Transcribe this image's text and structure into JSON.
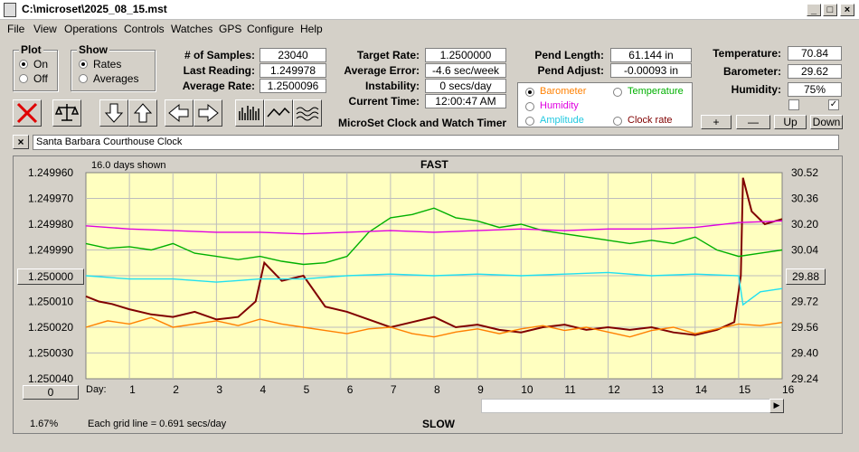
{
  "window": {
    "title": "C:\\microset\\2025_08_15.mst"
  },
  "menu": [
    "File",
    "View",
    "Operations",
    "Controls",
    "Watches",
    "GPS",
    "Configure",
    "Help"
  ],
  "plot": {
    "title": "Plot",
    "on": "On",
    "off": "Off"
  },
  "show": {
    "title": "Show",
    "rates": "Rates",
    "averages": "Averages"
  },
  "stats": {
    "samples_label": "# of Samples:",
    "samples": "23040",
    "last_label": "Last Reading:",
    "last": "1.249978",
    "avg_label": "Average Rate:",
    "avg": "1.2500096"
  },
  "target": {
    "target_label": "Target Rate:",
    "target": "1.2500000",
    "error_label": "Average Error:",
    "error": "-4.6 sec/week",
    "instab_label": "Instability:",
    "instab": "0 secs/day",
    "time_label": "Current Time:",
    "time": "12:00:47 AM",
    "app_name": "MicroSet Clock and Watch Timer"
  },
  "pend": {
    "length_label": "Pend Length:",
    "length": "61.144 in",
    "adjust_label": "Pend Adjust:",
    "adjust": "-0.00093 in"
  },
  "env": {
    "temp_label": "Temperature:",
    "temp": "70.84",
    "baro_label": "Barometer:",
    "baro": "29.62",
    "hum_label": "Humidity:",
    "hum": "75%"
  },
  "secondary": {
    "barometer": "Barometer",
    "temperature": "Temperature",
    "humidity": "Humidity",
    "amplitude": "Amplitude",
    "clock_rate": "Clock rate"
  },
  "adjust_buttons": {
    "plus": "+",
    "minus": "—",
    "up": "Up",
    "down": "Down"
  },
  "clock_name": "Santa Barbara Courthouse Clock",
  "close_x": "×",
  "chart_controls": {
    "center_left": "1.250000",
    "left_bottom": "0",
    "center_right": "29.88",
    "percent": "1.67%",
    "grid_note": "Each grid line = 0.691 secs/day"
  },
  "colors": {
    "rate": "#800000",
    "barometer": "#ff8000",
    "temperature": "#00b000",
    "humidity": "#e000e0",
    "amplitude": "#20e0f0",
    "plot_bg": "#ffffc0"
  },
  "chart_data": {
    "type": "line",
    "title": "FAST",
    "bottom_label": "SLOW",
    "days_shown": "16.0 days shown",
    "xlabel": "Day:",
    "x_ticks": [
      "1",
      "2",
      "3",
      "4",
      "5",
      "6",
      "7",
      "8",
      "9",
      "10",
      "11",
      "12",
      "13",
      "14",
      "15",
      "16"
    ],
    "xlim": [
      0,
      16
    ],
    "y_ticks_left": [
      "1.249960",
      "1.249970",
      "1.249980",
      "1.249990",
      "1.250000",
      "1.250010",
      "1.250020",
      "1.250030",
      "1.250040"
    ],
    "ylim_left": [
      1.24996,
      1.25004
    ],
    "y_ticks_right": [
      "30.52",
      "30.36",
      "30.20",
      "30.04",
      "29.88",
      "29.72",
      "29.56",
      "29.40",
      "29.24"
    ],
    "ylim_right": [
      30.52,
      29.24
    ],
    "series": [
      {
        "name": "Clock rate",
        "color": "#800000",
        "x": [
          0,
          0.3,
          0.6,
          1,
          1.5,
          2,
          2.5,
          3,
          3.5,
          3.9,
          4.1,
          4.5,
          5,
          5.5,
          6,
          6.5,
          7,
          7.5,
          8,
          8.5,
          9,
          9.5,
          10,
          10.5,
          11,
          11.5,
          12,
          12.5,
          13,
          13.5,
          14,
          14.5,
          14.9,
          15.05,
          15.1,
          15.3,
          15.6,
          16
        ],
        "y": [
          1.250008,
          1.25001,
          1.250011,
          1.250013,
          1.250015,
          1.250016,
          1.250014,
          1.250017,
          1.250016,
          1.25001,
          1.249995,
          1.250002,
          1.25,
          1.250012,
          1.250014,
          1.250017,
          1.25002,
          1.250018,
          1.250016,
          1.25002,
          1.250019,
          1.250021,
          1.250022,
          1.25002,
          1.250019,
          1.250021,
          1.25002,
          1.250021,
          1.25002,
          1.250022,
          1.250023,
          1.250021,
          1.250018,
          1.25,
          1.249962,
          1.249975,
          1.24998,
          1.249978
        ]
      },
      {
        "name": "Barometer",
        "color": "#ff8000",
        "x": [
          0,
          0.5,
          1,
          1.5,
          2,
          2.5,
          3,
          3.5,
          4,
          4.5,
          5,
          5.5,
          6,
          6.5,
          7,
          7.5,
          8,
          8.5,
          9,
          9.5,
          10,
          10.5,
          11,
          11.5,
          12,
          12.5,
          13,
          13.5,
          14,
          14.5,
          15,
          15.5,
          16
        ],
        "y": [
          29.56,
          29.6,
          29.58,
          29.62,
          29.56,
          29.58,
          29.6,
          29.57,
          29.61,
          29.58,
          29.56,
          29.54,
          29.52,
          29.55,
          29.56,
          29.52,
          29.5,
          29.53,
          29.55,
          29.52,
          29.55,
          29.57,
          29.54,
          29.56,
          29.53,
          29.5,
          29.54,
          29.56,
          29.52,
          29.55,
          29.58,
          29.57,
          29.59
        ]
      },
      {
        "name": "Temperature",
        "color": "#00b000",
        "x": [
          0,
          0.5,
          1,
          1.5,
          2,
          2.5,
          3,
          3.5,
          4,
          4.5,
          5,
          5.5,
          6,
          6.5,
          7,
          7.5,
          8,
          8.5,
          9,
          9.5,
          10,
          10.5,
          11,
          11.5,
          12,
          12.5,
          13,
          13.5,
          14,
          14.5,
          15,
          15.5,
          16
        ],
        "y": [
          30.08,
          30.05,
          30.06,
          30.04,
          30.08,
          30.02,
          30.0,
          29.98,
          30.0,
          29.97,
          29.95,
          29.96,
          30.0,
          30.15,
          30.24,
          30.26,
          30.3,
          30.24,
          30.22,
          30.18,
          30.2,
          30.16,
          30.14,
          30.12,
          30.1,
          30.08,
          30.1,
          30.08,
          30.12,
          30.04,
          30.0,
          30.02,
          30.04
        ]
      },
      {
        "name": "Humidity",
        "color": "#e000e0",
        "x": [
          0,
          1,
          2,
          3,
          4,
          5,
          6,
          7,
          8,
          9,
          10,
          11,
          12,
          13,
          14,
          15,
          16
        ],
        "y": [
          30.19,
          30.17,
          30.16,
          30.15,
          30.15,
          30.14,
          30.15,
          30.16,
          30.15,
          30.16,
          30.17,
          30.16,
          30.17,
          30.17,
          30.18,
          30.21,
          30.22
        ]
      },
      {
        "name": "Amplitude",
        "color": "#20e0f0",
        "x": [
          0,
          1,
          2,
          3,
          4,
          5,
          6,
          7,
          8,
          9,
          10,
          11,
          12,
          13,
          14,
          15,
          15.1,
          15.5,
          16
        ],
        "y": [
          29.88,
          29.86,
          29.86,
          29.84,
          29.86,
          29.86,
          29.88,
          29.89,
          29.88,
          29.89,
          29.88,
          29.89,
          29.9,
          29.88,
          29.89,
          29.88,
          29.7,
          29.78,
          29.8
        ]
      }
    ]
  }
}
